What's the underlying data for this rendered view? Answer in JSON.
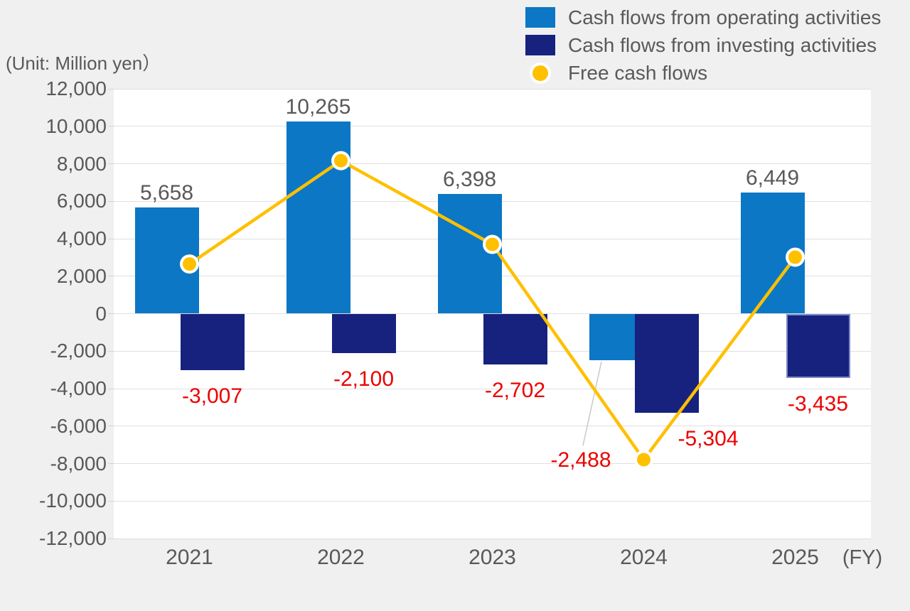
{
  "unit_label": "(Unit: Million yen）",
  "fy_label": "(FY)",
  "legend": {
    "items": [
      {
        "label": "Cash flows from operating activities",
        "marker": "square",
        "color": "#0C77C5"
      },
      {
        "label": "Cash flows from investing activities",
        "marker": "square",
        "color": "#16227E"
      },
      {
        "label": "Free cash flows",
        "marker": "circle",
        "color": "#FFC000"
      }
    ]
  },
  "chart_data": {
    "type": "bar",
    "subtype": "grouped overlapping bars with line overlay",
    "categories": [
      "2021",
      "2022",
      "2023",
      "2024",
      "2025"
    ],
    "series": [
      {
        "name": "Cash flows from operating activities",
        "type": "bar",
        "color": "#0C77C5",
        "values": [
          5658,
          10265,
          6398,
          -2488,
          6449
        ],
        "data_labels": [
          "5,658",
          "10,265",
          "6,398",
          "-2,488",
          "6,449"
        ]
      },
      {
        "name": "Cash flows from investing activities",
        "type": "bar",
        "color": "#16227E",
        "values": [
          -3007,
          -2100,
          -2702,
          -5304,
          -3435
        ],
        "data_labels": [
          "-3,007",
          "-2,100",
          "-2,702",
          "-5,304",
          "-3,435"
        ],
        "highlighted": [
          false,
          false,
          false,
          false,
          true
        ]
      },
      {
        "name": "Free cash flows",
        "type": "line",
        "color": "#FFC000",
        "values": [
          2651,
          8165,
          3696,
          -7792,
          3014
        ]
      }
    ],
    "ylim": [
      -12000,
      12000
    ],
    "ytick_step": 2000,
    "ytick_labels": [
      "12,000",
      "10,000",
      "8,000",
      "6,000",
      "4,000",
      "2,000",
      "0",
      "-2,000",
      "-4,000",
      "-6,000",
      "-8,000",
      "-10,000",
      "-12,000"
    ],
    "xlabel": "(FY)",
    "ylabel": "(Unit: Million yen）",
    "grid": "horizontal",
    "legend_position": "top-right",
    "label_colors": {
      "positive": "#595959",
      "negative": "#EC0000"
    }
  },
  "colors": {
    "page_bg": "#F0F0F0",
    "plot_bg": "#FFFFFF",
    "grid": "#DFDFDF",
    "text_gray": "#595959",
    "label_red": "#EC0000",
    "leader_line": "#C8C8C8",
    "highlight_border": "#7D8AC8"
  }
}
